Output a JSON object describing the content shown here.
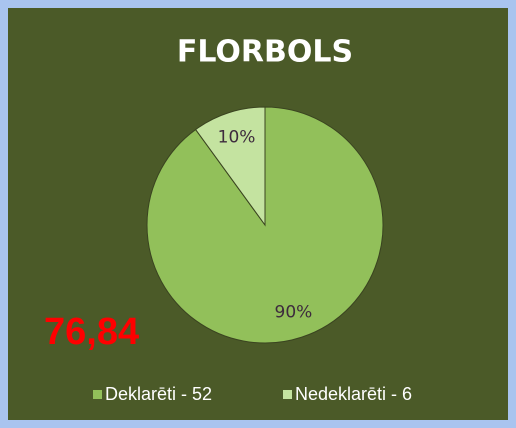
{
  "chart_data": {
    "type": "pie",
    "title": "FLORBOLS",
    "categories": [
      "Deklarēti - 52",
      "Nedeklarēti - 6"
    ],
    "values": [
      90,
      10
    ],
    "value_labels": [
      "90%",
      "10%"
    ],
    "colors": [
      "#92c05a",
      "#c4e3a0"
    ],
    "annotation": "76,84",
    "legend": "bottom"
  }
}
